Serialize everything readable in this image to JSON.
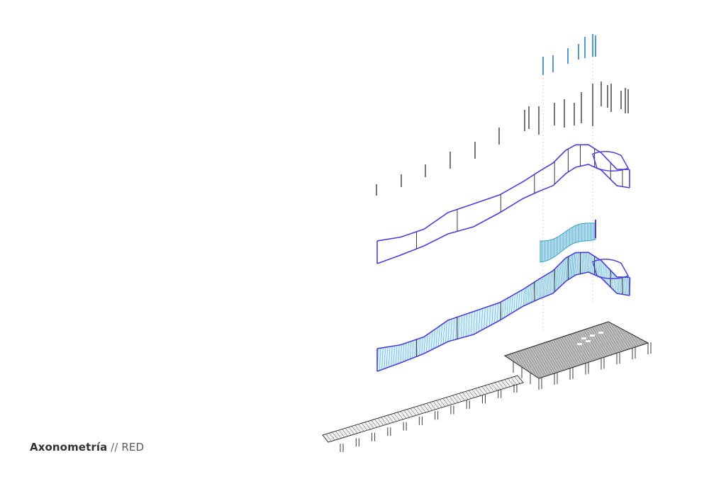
{
  "caption": {
    "title": "Axonometría",
    "separator": " // ",
    "subtitle": "RED"
  },
  "colors": {
    "background": "#ffffff",
    "contour": "#4b3fd8",
    "mesh": "#3a9fc4",
    "mesh_fill": "#d8eef8",
    "accent_posts": "#2a7fd0",
    "structure": "#3a3a3a",
    "guide_lines": "#b8b8b8"
  }
}
